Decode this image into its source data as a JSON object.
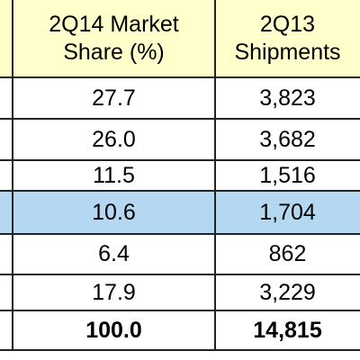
{
  "chart_data": {
    "type": "table",
    "columns": [
      "2Q14 Market\nShare (%)",
      "2Q13\nShipments"
    ],
    "rows": [
      [
        "27.7",
        "3,823"
      ],
      [
        "26.0",
        "3,682"
      ],
      [
        "11.5",
        "1,516"
      ],
      [
        "10.6",
        "1,704"
      ],
      [
        "6.4",
        "862"
      ],
      [
        "17.9",
        "3,229"
      ],
      [
        "100.0",
        "14,815"
      ]
    ],
    "highlighted_row": 3,
    "total_row": 6
  },
  "colors": {
    "header_background": "#ffffcc",
    "highlight_background": "#b4d7f2",
    "grid_lines": "#222222"
  }
}
